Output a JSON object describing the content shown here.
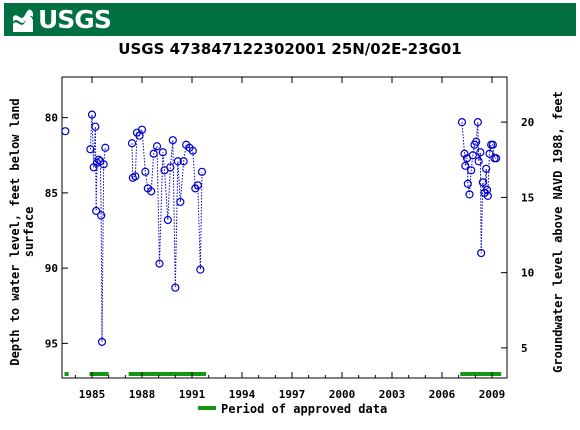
{
  "banner": {
    "logo_text": "USGS",
    "logo_icon": "usgs-wave-icon",
    "color": "#006f41"
  },
  "title": "USGS 473847122302001 25N/02E-23G01",
  "chart_data": {
    "type": "scatter",
    "title": "USGS 473847122302001 25N/02E-23G01",
    "ylabel_left": [
      "Depth to water level, feet below land",
      "surface"
    ],
    "ylabel_right": "Groundwater level above NAVD 1988, feet",
    "x_ticks": [
      "1985",
      "1988",
      "1991",
      "1994",
      "1997",
      "2000",
      "2003",
      "2006",
      "2009"
    ],
    "xlim": [
      1983.2,
      2009.9
    ],
    "ylim_left": [
      97.3,
      77.3
    ],
    "left_ticks": [
      80,
      85,
      90,
      95
    ],
    "right_ticks": [
      20,
      15,
      10,
      5
    ],
    "right_offset": 100.3,
    "point_color": "#0000cc",
    "approved_color": "#119911",
    "legend": "Period of approved data",
    "points": [
      [
        1983.4,
        80.9
      ],
      [
        1984.9,
        82.1
      ],
      [
        1985.0,
        79.8
      ],
      [
        1985.1,
        83.3
      ],
      [
        1985.2,
        80.6
      ],
      [
        1985.25,
        86.2
      ],
      [
        1985.3,
        83.0
      ],
      [
        1985.4,
        82.8
      ],
      [
        1985.5,
        82.9
      ],
      [
        1985.55,
        86.5
      ],
      [
        1985.6,
        94.9
      ],
      [
        1985.7,
        83.1
      ],
      [
        1985.8,
        82.0
      ],
      [
        1987.4,
        81.7
      ],
      [
        1987.45,
        84.0
      ],
      [
        1987.6,
        83.9
      ],
      [
        1987.7,
        81.0
      ],
      [
        1987.85,
        81.2
      ],
      [
        1988.0,
        80.8
      ],
      [
        1988.2,
        83.6
      ],
      [
        1988.35,
        84.7
      ],
      [
        1988.55,
        84.9
      ],
      [
        1988.7,
        82.4
      ],
      [
        1988.9,
        81.9
      ],
      [
        1989.05,
        89.7
      ],
      [
        1989.25,
        82.3
      ],
      [
        1989.35,
        83.5
      ],
      [
        1989.55,
        86.8
      ],
      [
        1989.7,
        83.3
      ],
      [
        1989.85,
        81.5
      ],
      [
        1990.0,
        91.3
      ],
      [
        1990.15,
        82.9
      ],
      [
        1990.3,
        85.6
      ],
      [
        1990.5,
        82.9
      ],
      [
        1990.65,
        81.8
      ],
      [
        1990.85,
        82.0
      ],
      [
        1991.05,
        82.2
      ],
      [
        1991.2,
        84.7
      ],
      [
        1991.35,
        84.5
      ],
      [
        1991.5,
        90.1
      ],
      [
        1991.6,
        83.6
      ],
      [
        2007.2,
        80.3
      ],
      [
        2007.35,
        82.4
      ],
      [
        2007.4,
        83.2
      ],
      [
        2007.5,
        82.7
      ],
      [
        2007.55,
        84.4
      ],
      [
        2007.65,
        85.1
      ],
      [
        2007.75,
        83.5
      ],
      [
        2007.85,
        82.5
      ],
      [
        2007.95,
        81.8
      ],
      [
        2008.05,
        81.6
      ],
      [
        2008.15,
        80.3
      ],
      [
        2008.2,
        82.9
      ],
      [
        2008.3,
        82.3
      ],
      [
        2008.35,
        89.0
      ],
      [
        2008.45,
        84.3
      ],
      [
        2008.55,
        85.0
      ],
      [
        2008.65,
        83.4
      ],
      [
        2008.7,
        84.8
      ],
      [
        2008.75,
        85.2
      ],
      [
        2008.85,
        82.4
      ],
      [
        2008.95,
        81.8
      ],
      [
        2009.05,
        81.8
      ],
      [
        2009.15,
        82.7
      ],
      [
        2009.25,
        82.7
      ]
    ],
    "segments": [
      [
        [
          1984.9,
          1985.8
        ]
      ],
      [
        [
          1987.4,
          1991.6
        ]
      ],
      [
        [
          2007.2,
          2009.25
        ]
      ]
    ],
    "approved_periods": [
      [
        1983.35,
        1983.6
      ],
      [
        1984.85,
        1986.0
      ],
      [
        1987.2,
        1991.85
      ],
      [
        2007.1,
        2009.55
      ]
    ]
  }
}
